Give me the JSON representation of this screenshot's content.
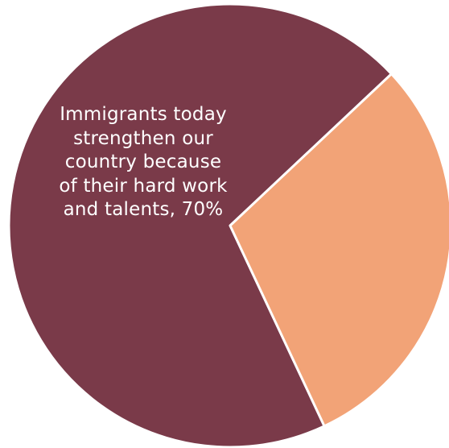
{
  "chart_data": {
    "type": "pie",
    "slices": [
      {
        "label": "Immigrants today strengthen our country because of their hard work and talents",
        "value": 70,
        "color": "#7a3a49",
        "data_label": "Immigrants today strengthen our country because of their hard work and talents, 70%"
      },
      {
        "label": "",
        "value": 30,
        "color": "#f2a377",
        "data_label": ""
      }
    ],
    "legend": "none"
  }
}
